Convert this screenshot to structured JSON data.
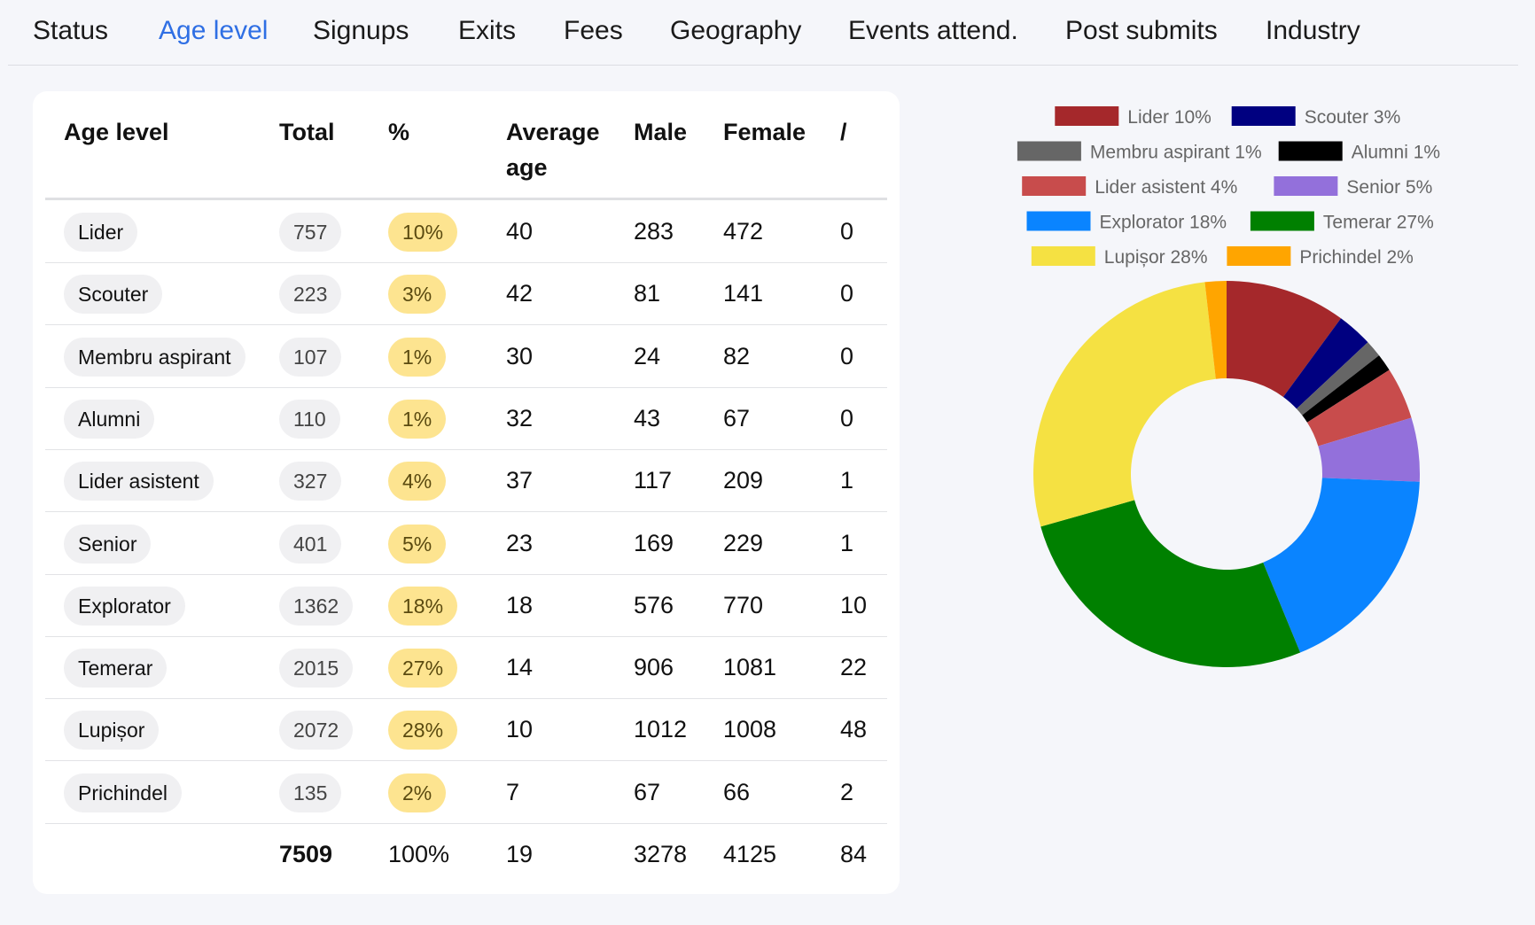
{
  "tabs": [
    {
      "label": "Status",
      "active": false
    },
    {
      "label": "Age level",
      "active": true
    },
    {
      "label": "Signups",
      "active": false
    },
    {
      "label": "Exits",
      "active": false
    },
    {
      "label": "Fees",
      "active": false
    },
    {
      "label": "Geography",
      "active": false
    },
    {
      "label": "Events attend.",
      "active": false
    },
    {
      "label": "Post submits",
      "active": false
    },
    {
      "label": "Industry",
      "active": false
    }
  ],
  "table": {
    "headers": {
      "age_level": "Age level",
      "total": "Total",
      "percent": "%",
      "average_age_line1": "Average",
      "average_age_line2": "age",
      "male": "Male",
      "female": "Female",
      "slash": "/"
    },
    "rows": [
      {
        "level": "Lider",
        "total": "757",
        "pct": "10%",
        "avg": "40",
        "male": "283",
        "female": "472",
        "other": "0"
      },
      {
        "level": "Scouter",
        "total": "223",
        "pct": "3%",
        "avg": "42",
        "male": "81",
        "female": "141",
        "other": "0"
      },
      {
        "level": "Membru aspirant",
        "total": "107",
        "pct": "1%",
        "avg": "30",
        "male": "24",
        "female": "82",
        "other": "0"
      },
      {
        "level": "Alumni",
        "total": "110",
        "pct": "1%",
        "avg": "32",
        "male": "43",
        "female": "67",
        "other": "0"
      },
      {
        "level": "Lider asistent",
        "total": "327",
        "pct": "4%",
        "avg": "37",
        "male": "117",
        "female": "209",
        "other": "1"
      },
      {
        "level": "Senior",
        "total": "401",
        "pct": "5%",
        "avg": "23",
        "male": "169",
        "female": "229",
        "other": "1"
      },
      {
        "level": "Explorator",
        "total": "1362",
        "pct": "18%",
        "avg": "18",
        "male": "576",
        "female": "770",
        "other": "10"
      },
      {
        "level": "Temerar",
        "total": "2015",
        "pct": "27%",
        "avg": "14",
        "male": "906",
        "female": "1081",
        "other": "22"
      },
      {
        "level": "Lupișor",
        "total": "2072",
        "pct": "28%",
        "avg": "10",
        "male": "1012",
        "female": "1008",
        "other": "48"
      },
      {
        "level": "Prichindel",
        "total": "135",
        "pct": "2%",
        "avg": "7",
        "male": "67",
        "female": "66",
        "other": "2"
      }
    ],
    "totals": {
      "total": "7509",
      "pct": "100%",
      "avg": "19",
      "male": "3278",
      "female": "4125",
      "other": "84"
    }
  },
  "chart_data": {
    "type": "pie",
    "donut": true,
    "legend_position": "top",
    "categories": [
      "Lider 10%",
      "Scouter 3%",
      "Membru aspirant 1%",
      "Alumni 1%",
      "Lider asistent 4%",
      "Senior 5%",
      "Explorator 18%",
      "Temerar 27%",
      "Lupișor 28%",
      "Prichindel 2%"
    ],
    "values": [
      757,
      223,
      107,
      110,
      327,
      401,
      1362,
      2015,
      2072,
      135
    ],
    "colors": [
      "#a5282b",
      "#000080",
      "#666666",
      "#000000",
      "#c84c4c",
      "#9370db",
      "#0a84ff",
      "#008000",
      "#f5e142",
      "#ffa500"
    ]
  }
}
